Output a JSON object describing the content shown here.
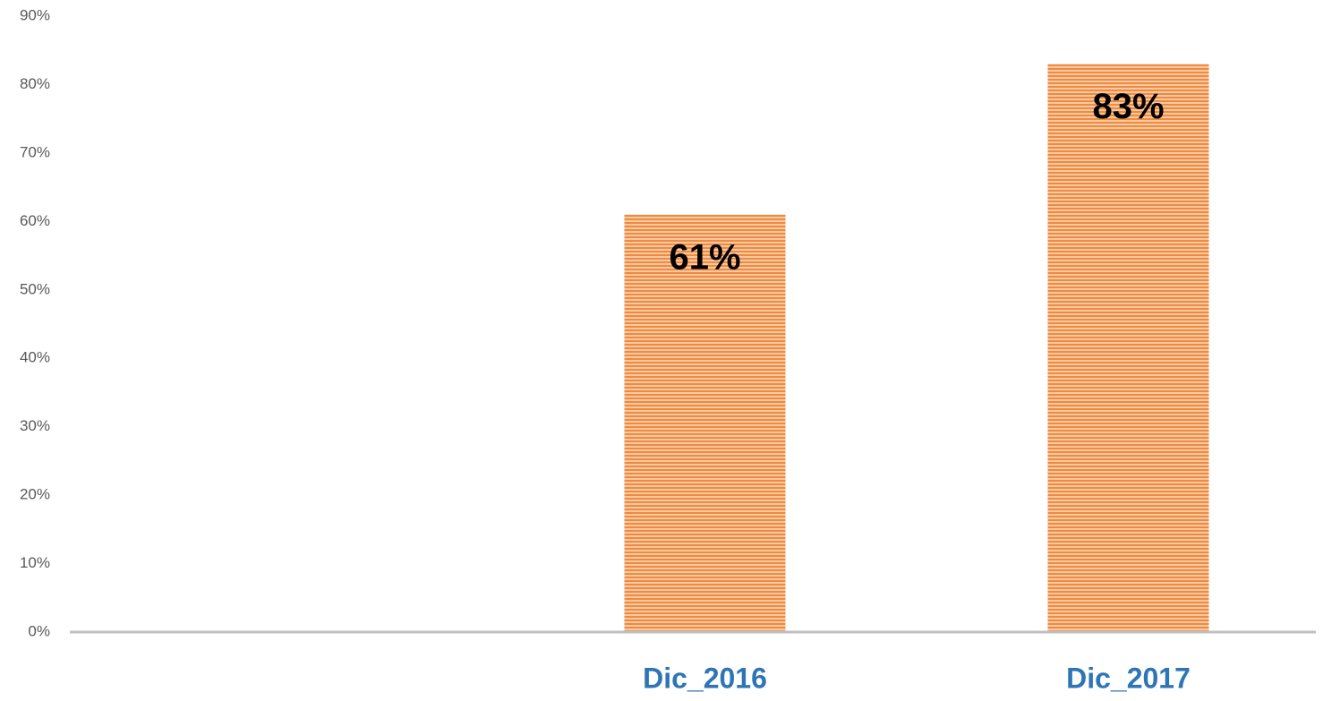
{
  "chart_data": {
    "type": "bar",
    "categories": [
      null,
      "Dic_2016",
      "Dic_2017"
    ],
    "values": [
      null,
      61,
      83
    ],
    "value_labels": [
      null,
      "61%",
      "83%"
    ],
    "color": "#ed7d31",
    "ylim": [
      0,
      90
    ],
    "yticks": [
      {
        "value": 0,
        "label": "0%"
      },
      {
        "value": 10,
        "label": "10%"
      },
      {
        "value": 20,
        "label": "20%"
      },
      {
        "value": 30,
        "label": "30%"
      },
      {
        "value": 40,
        "label": "40%"
      },
      {
        "value": 50,
        "label": "50%"
      },
      {
        "value": 60,
        "label": "60%"
      },
      {
        "value": 70,
        "label": "70%"
      },
      {
        "value": 80,
        "label": "80%"
      },
      {
        "value": 90,
        "label": "90%"
      }
    ],
    "grid": false
  }
}
